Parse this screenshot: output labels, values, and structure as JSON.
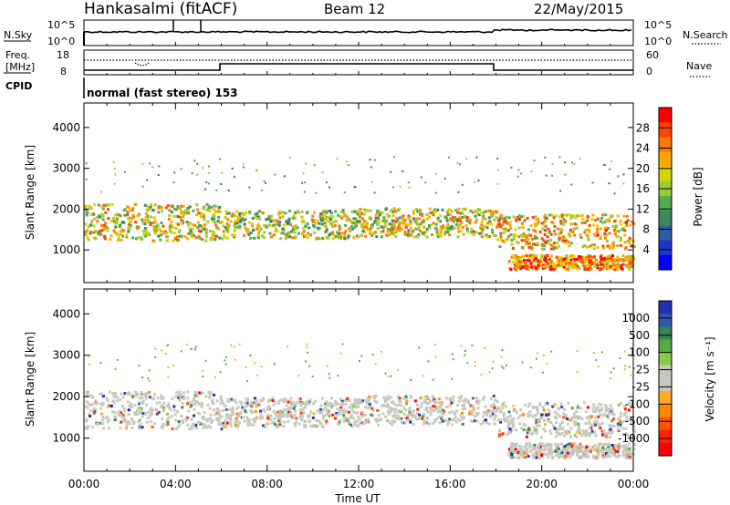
{
  "header": {
    "station": "Hankasalmi (fitACF)",
    "beam": "Beam 12",
    "date": "22/May/2015"
  },
  "top_panels": {
    "nsky_label": "N.Sky",
    "nsky_ticks": [
      "10^5",
      "10^0"
    ],
    "nsearch_label": "N.Search",
    "nsearch_ticks": [
      "10^5",
      "10^0"
    ],
    "freq_label_1": "Freq.",
    "freq_label_2": "[MHz]",
    "freq_ticks": [
      "18",
      "8"
    ],
    "nave_label": "Nave",
    "nave_ticks": [
      "60",
      "0"
    ],
    "cpid_label": "CPID",
    "cpid_text": "normal (fast stereo) 153"
  },
  "chart_data": [
    {
      "type": "heatmap",
      "panel": "power",
      "title": "",
      "xlabel": "Time UT",
      "ylabel": "Slant Range [km]",
      "y_ticks": [
        "4000",
        "3000",
        "2000",
        "1000"
      ],
      "ylim": [
        200,
        4600
      ],
      "colorbar_label": "Power [dB]",
      "colorbar_ticks": [
        "28",
        "24",
        "20",
        "16",
        "12",
        "8",
        "4"
      ],
      "colorbar_colors": [
        "#ff0000",
        "#ff4400",
        "#ff7700",
        "#ffaa00",
        "#d4d400",
        "#99cc33",
        "#55aa55",
        "#3a8a5e",
        "#2d5fa0",
        "#1f35c8",
        "#0000ff"
      ],
      "scatter_bands": [
        {
          "t0": 0.0,
          "t1": 6.0,
          "r0": 1250,
          "r1": 2150,
          "mean": 18
        },
        {
          "t0": 6.0,
          "t1": 12.0,
          "r0": 1300,
          "r1": 2000,
          "mean": 16
        },
        {
          "t0": 12.0,
          "t1": 18.0,
          "r0": 1350,
          "r1": 2050,
          "mean": 17
        },
        {
          "t0": 18.0,
          "t1": 24.0,
          "r0": 1050,
          "r1": 1900,
          "mean": 20
        },
        {
          "t0": 18.5,
          "t1": 24.0,
          "r0": 550,
          "r1": 900,
          "mean": 24
        }
      ]
    },
    {
      "type": "heatmap",
      "panel": "velocity",
      "title": "",
      "xlabel": "Time UT",
      "ylabel": "Slant Range [km]",
      "y_ticks": [
        "4000",
        "3000",
        "2000",
        "1000"
      ],
      "ylim": [
        200,
        4600
      ],
      "colorbar_label": "Velocity [m s⁻¹]",
      "colorbar_ticks": [
        "1000",
        "500",
        "100",
        "25",
        "-25",
        "-100",
        "-500",
        "-1000"
      ],
      "colorbar_colors": [
        "#2030b0",
        "#3355aa",
        "#338855",
        "#55aa44",
        "#88cc44",
        "#c8c8c0",
        "#c8c8c0",
        "#ffaa22",
        "#ff8800",
        "#ff5500",
        "#ff2200",
        "#ff0000"
      ],
      "x_ticks": [
        "00:00",
        "04:00",
        "08:00",
        "12:00",
        "16:00",
        "20:00",
        "00:00"
      ],
      "xlim": [
        0,
        24
      ]
    }
  ]
}
